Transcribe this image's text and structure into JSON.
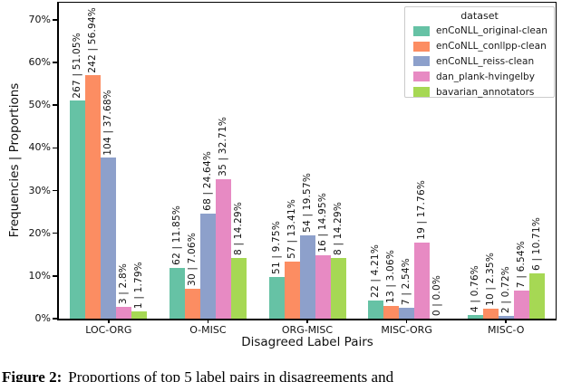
{
  "figure": {
    "caption_prefix": "Figure 2:",
    "caption_rest": "Proportions of top 5 label pairs in disagreements and"
  },
  "legend": {
    "title": "dataset",
    "entries": [
      {
        "label": "enCoNLL_original-clean",
        "color": "#66c2a5"
      },
      {
        "label": "enCoNLL_conllpp-clean",
        "color": "#fc8d62"
      },
      {
        "label": "enCoNLL_reiss-clean",
        "color": "#8da0cb"
      },
      {
        "label": "dan_plank-hvingelby",
        "color": "#e78ac3"
      },
      {
        "label": "bavarian_annotators",
        "color": "#a6d854"
      }
    ]
  },
  "chart_data": {
    "type": "bar",
    "title": "",
    "xlabel": "Disagreed Label Pairs",
    "ylabel": "Frequencies | Proportions",
    "categories": [
      "LOC-ORG",
      "O-MISC",
      "ORG-MISC",
      "MISC-ORG",
      "MISC-O"
    ],
    "ylim": [
      0,
      74
    ],
    "grid": false,
    "legend_position": "upper right",
    "yticks": [
      {
        "pct": 0,
        "label": "0%"
      },
      {
        "pct": 10,
        "label": "10%"
      },
      {
        "pct": 20,
        "label": "20%"
      },
      {
        "pct": 30,
        "label": "30%"
      },
      {
        "pct": 40,
        "label": "40%"
      },
      {
        "pct": 50,
        "label": "50%"
      },
      {
        "pct": 60,
        "label": "60%"
      },
      {
        "pct": 70,
        "label": "70%"
      }
    ],
    "series": [
      {
        "name": "enCoNLL_original-clean",
        "color": "#66c2a5",
        "counts": [
          267,
          62,
          51,
          22,
          4
        ],
        "values": [
          51.05,
          11.85,
          9.75,
          4.21,
          0.76
        ],
        "labels": [
          "267 | 51.05%",
          "62 | 11.85%",
          "51 | 9.75%",
          "22 | 4.21%",
          "4 | 0.76%"
        ]
      },
      {
        "name": "enCoNLL_conllpp-clean",
        "color": "#fc8d62",
        "counts": [
          242,
          30,
          57,
          13,
          10
        ],
        "values": [
          56.94,
          7.06,
          13.41,
          3.06,
          2.35
        ],
        "labels": [
          "242 | 56.94%",
          "30 | 7.06%",
          "57 | 13.41%",
          "13 | 3.06%",
          "10 | 2.35%"
        ]
      },
      {
        "name": "enCoNLL_reiss-clean",
        "color": "#8da0cb",
        "counts": [
          104,
          68,
          54,
          7,
          2
        ],
        "values": [
          37.68,
          24.64,
          19.57,
          2.54,
          0.72
        ],
        "labels": [
          "104 | 37.68%",
          "68 | 24.64%",
          "54 | 19.57%",
          "7 | 2.54%",
          "2 | 0.72%"
        ]
      },
      {
        "name": "dan_plank-hvingelby",
        "color": "#e78ac3",
        "counts": [
          3,
          35,
          16,
          19,
          7
        ],
        "values": [
          2.8,
          32.71,
          14.95,
          17.76,
          6.54
        ],
        "labels": [
          "3 | 2.8%",
          "35 | 32.71%",
          "16 | 14.95%",
          "19 | 17.76%",
          "7 | 6.54%"
        ]
      },
      {
        "name": "bavarian_annotators",
        "color": "#a6d854",
        "counts": [
          1,
          8,
          8,
          0,
          6
        ],
        "values": [
          1.79,
          14.29,
          14.29,
          0.0,
          10.71
        ],
        "labels": [
          "1 | 1.79%",
          "8 | 14.29%",
          "8 | 14.29%",
          "0 | 0.0%",
          "6 | 10.71%"
        ]
      }
    ]
  }
}
